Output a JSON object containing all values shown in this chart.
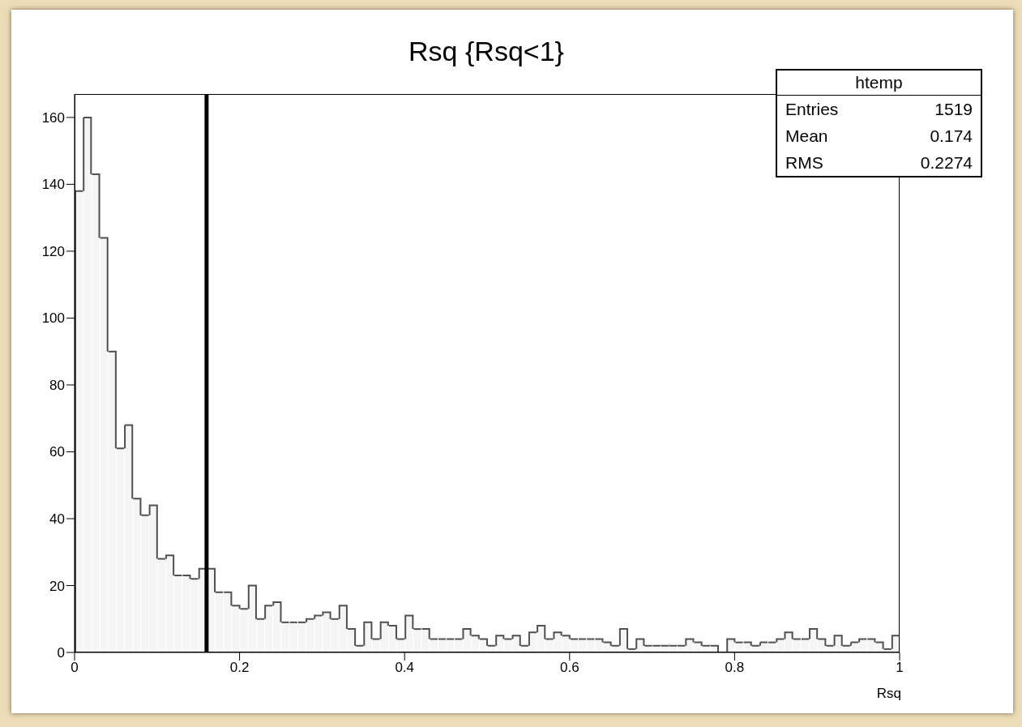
{
  "chart_data": {
    "type": "histogram",
    "title": "Rsq {Rsq<1}",
    "xlabel": "Rsq",
    "bins": [
      0,
      0.01,
      0.02,
      0.03,
      0.04,
      0.05,
      0.06,
      0.07,
      0.08,
      0.09,
      0.1,
      0.11,
      0.12,
      0.13,
      0.14,
      0.15,
      0.16,
      0.17,
      0.18,
      0.19,
      0.2,
      0.21,
      0.22,
      0.23,
      0.24,
      0.25,
      0.26,
      0.27,
      0.28,
      0.29,
      0.3,
      0.31,
      0.32,
      0.33,
      0.34,
      0.35,
      0.36,
      0.37,
      0.38,
      0.39,
      0.4,
      0.41,
      0.42,
      0.43,
      0.44,
      0.45,
      0.46,
      0.47,
      0.48,
      0.49,
      0.5,
      0.51,
      0.52,
      0.53,
      0.54,
      0.55,
      0.56,
      0.57,
      0.58,
      0.59,
      0.6,
      0.61,
      0.62,
      0.63,
      0.64,
      0.65,
      0.66,
      0.67,
      0.68,
      0.69,
      0.7,
      0.71,
      0.72,
      0.73,
      0.74,
      0.75,
      0.76,
      0.77,
      0.78,
      0.79,
      0.8,
      0.81,
      0.82,
      0.83,
      0.84,
      0.85,
      0.86,
      0.87,
      0.88,
      0.89,
      0.9,
      0.91,
      0.92,
      0.93,
      0.94,
      0.95,
      0.96,
      0.97,
      0.98,
      0.99,
      1
    ],
    "values": [
      138,
      160,
      143,
      124,
      90,
      61,
      68,
      46,
      41,
      44,
      28,
      29,
      23,
      23,
      22,
      25,
      25,
      18,
      18,
      14,
      13,
      20,
      10,
      14,
      15,
      9,
      9,
      9,
      10,
      11,
      12,
      10,
      14,
      7,
      2,
      9,
      4,
      9,
      8,
      4,
      11,
      7,
      7,
      4,
      4,
      4,
      4,
      7,
      5,
      4,
      2,
      5,
      4,
      5,
      2,
      6,
      8,
      4,
      6,
      5,
      4,
      4,
      4,
      4,
      3,
      2,
      7,
      1,
      4,
      2,
      2,
      2,
      2,
      2,
      4,
      3,
      2,
      2,
      0,
      4,
      3,
      3,
      2,
      3,
      3,
      4,
      6,
      4,
      4,
      7,
      4,
      2,
      5,
      2,
      3,
      4,
      4,
      3,
      1,
      5
    ],
    "color": "#505050",
    "xlim": [
      0,
      1
    ],
    "xticks": [
      0,
      0.2,
      0.4,
      0.6,
      0.8,
      1
    ],
    "ylim": [
      0,
      167
    ],
    "yticks": [
      0,
      20,
      40,
      60,
      80,
      100,
      120,
      140,
      160
    ],
    "ref_lines": [
      {
        "axis": "x",
        "value": 0.16,
        "color": "#000000"
      }
    ],
    "annotations": [
      "htemp",
      "Entries",
      "1519",
      "Mean",
      "0.174",
      "RMS",
      "0.2274"
    ]
  }
}
